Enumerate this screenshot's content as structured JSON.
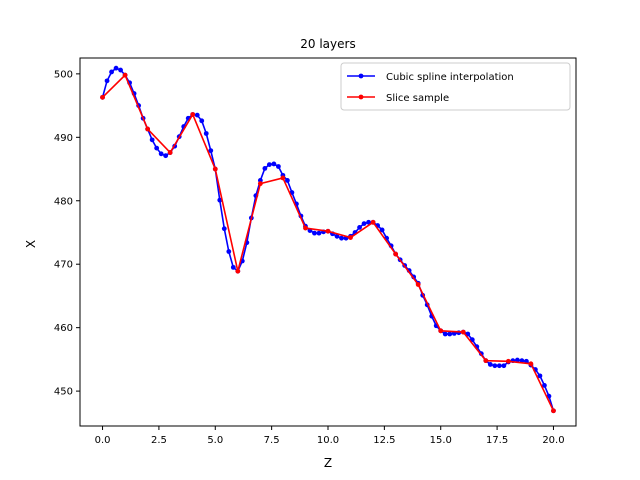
{
  "chart_data": {
    "type": "line",
    "title": "20 layers",
    "xlabel": "Z",
    "ylabel": "X",
    "xlim": [
      -1.0,
      21.0
    ],
    "ylim": [
      444.5,
      502.5
    ],
    "xticks": [
      0.0,
      2.5,
      5.0,
      7.5,
      10.0,
      12.5,
      15.0,
      17.5,
      20.0
    ],
    "xtick_labels": [
      "0.0",
      "2.5",
      "5.0",
      "7.5",
      "10.0",
      "12.5",
      "15.0",
      "17.5",
      "20.0"
    ],
    "yticks": [
      450,
      460,
      470,
      480,
      490,
      500
    ],
    "ytick_labels": [
      "450",
      "460",
      "470",
      "480",
      "490",
      "500"
    ],
    "grid": false,
    "legend_position": "top-right",
    "series": [
      {
        "name": "Cubic spline interpolation",
        "color": "#0000ff",
        "marker": "circle",
        "x": [
          0.0,
          0.2,
          0.4,
          0.6,
          0.8,
          1.0,
          1.2,
          1.4,
          1.6,
          1.8,
          2.0,
          2.2,
          2.4,
          2.6,
          2.8,
          3.0,
          3.2,
          3.4,
          3.6,
          3.8,
          4.0,
          4.2,
          4.4,
          4.6,
          4.8,
          5.0,
          5.2,
          5.4,
          5.6,
          5.8,
          6.0,
          6.2,
          6.4,
          6.6,
          6.8,
          7.0,
          7.2,
          7.4,
          7.6,
          7.8,
          8.0,
          8.2,
          8.4,
          8.6,
          8.8,
          9.0,
          9.2,
          9.4,
          9.6,
          9.8,
          10.0,
          10.2,
          10.4,
          10.6,
          10.8,
          11.0,
          11.2,
          11.4,
          11.6,
          11.8,
          12.0,
          12.2,
          12.4,
          12.6,
          12.8,
          13.0,
          13.2,
          13.4,
          13.6,
          13.8,
          14.0,
          14.2,
          14.4,
          14.6,
          14.8,
          15.0,
          15.2,
          15.4,
          15.6,
          15.8,
          16.0,
          16.2,
          16.4,
          16.6,
          16.8,
          17.0,
          17.2,
          17.4,
          17.6,
          17.8,
          18.0,
          18.2,
          18.4,
          18.6,
          18.8,
          19.0,
          19.2,
          19.4,
          19.6,
          19.8,
          20.0
        ],
        "y": [
          496.3,
          498.9,
          500.3,
          500.9,
          500.6,
          499.8,
          498.6,
          496.9,
          495.0,
          493.0,
          491.3,
          489.6,
          488.3,
          487.4,
          487.1,
          487.6,
          488.6,
          490.1,
          491.7,
          493.0,
          493.6,
          493.5,
          492.6,
          490.6,
          487.9,
          485.0,
          480.1,
          475.6,
          472.0,
          469.5,
          468.9,
          470.5,
          473.4,
          477.3,
          480.8,
          483.2,
          485.1,
          485.7,
          485.8,
          485.4,
          484.0,
          483.2,
          481.3,
          479.5,
          477.6,
          476.0,
          475.3,
          474.9,
          474.9,
          475.1,
          475.2,
          474.8,
          474.4,
          474.1,
          474.1,
          474.4,
          475.0,
          475.8,
          476.4,
          476.6,
          476.6,
          476.1,
          475.4,
          474.1,
          472.9,
          471.6,
          470.7,
          469.8,
          469.0,
          468.0,
          467.0,
          465.1,
          463.6,
          461.8,
          460.3,
          459.5,
          459.0,
          459.0,
          459.1,
          459.2,
          459.3,
          459.0,
          458.1,
          457.0,
          455.9,
          454.8,
          454.2,
          454.0,
          454.0,
          454.0,
          454.6,
          454.8,
          454.9,
          454.8,
          454.7,
          454.1,
          453.4,
          452.4,
          450.9,
          449.2,
          446.9
        ]
      },
      {
        "name": "Slice sample",
        "color": "#ff0000",
        "marker": "circle",
        "x": [
          0,
          1,
          2,
          3,
          4,
          5,
          6,
          7,
          8,
          9,
          10,
          11,
          12,
          13,
          14,
          15,
          16,
          17,
          18,
          19,
          20
        ],
        "y": [
          496.3,
          499.8,
          491.3,
          487.6,
          493.6,
          485.0,
          468.9,
          482.7,
          483.6,
          475.7,
          475.2,
          474.2,
          476.6,
          471.6,
          466.8,
          459.5,
          459.3,
          454.8,
          454.7,
          454.3,
          446.9
        ]
      }
    ]
  }
}
